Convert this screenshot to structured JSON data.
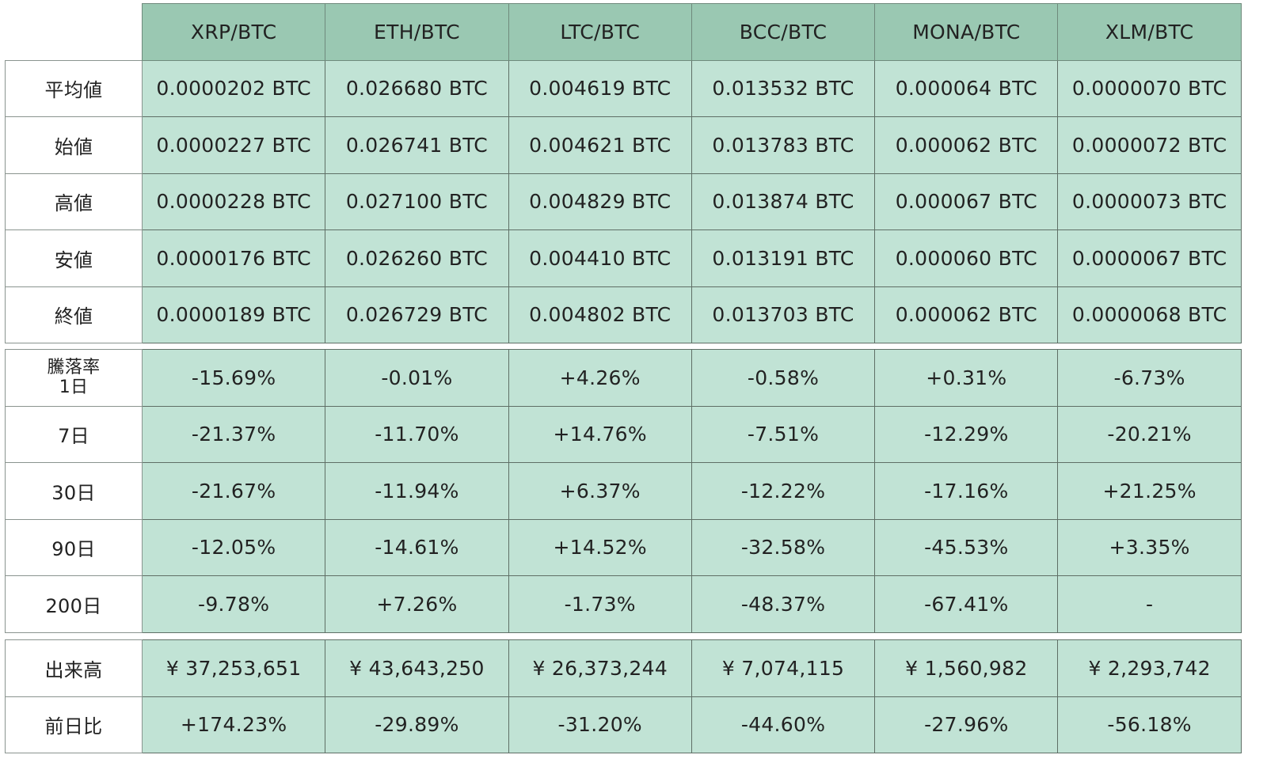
{
  "header": {
    "columns": [
      "XRP/BTC",
      "ETH/BTC",
      "LTC/BTC",
      "BCC/BTC",
      "MONA/BTC",
      "XLM/BTC"
    ]
  },
  "prices": {
    "rows": [
      {
        "label": "平均値",
        "values": [
          "0.0000202 BTC",
          "0.026680 BTC",
          "0.004619 BTC",
          "0.013532 BTC",
          "0.000064 BTC",
          "0.0000070 BTC"
        ]
      },
      {
        "label": "始値",
        "values": [
          "0.0000227 BTC",
          "0.026741 BTC",
          "0.004621 BTC",
          "0.013783 BTC",
          "0.000062 BTC",
          "0.0000072 BTC"
        ]
      },
      {
        "label": "高値",
        "values": [
          "0.0000228 BTC",
          "0.027100 BTC",
          "0.004829 BTC",
          "0.013874 BTC",
          "0.000067 BTC",
          "0.0000073 BTC"
        ]
      },
      {
        "label": "安値",
        "values": [
          "0.0000176 BTC",
          "0.026260 BTC",
          "0.004410 BTC",
          "0.013191 BTC",
          "0.000060 BTC",
          "0.0000067 BTC"
        ]
      },
      {
        "label": "終値",
        "values": [
          "0.0000189 BTC",
          "0.026729 BTC",
          "0.004802 BTC",
          "0.013703 BTC",
          "0.000062 BTC",
          "0.0000068 BTC"
        ]
      }
    ]
  },
  "changes": {
    "title": "騰落率",
    "rows": [
      {
        "label": "1日",
        "values": [
          "-15.69%",
          "-0.01%",
          "+4.26%",
          "-0.58%",
          "+0.31%",
          "-6.73%"
        ]
      },
      {
        "label": "7日",
        "values": [
          "-21.37%",
          "-11.70%",
          "+14.76%",
          "-7.51%",
          "-12.29%",
          "-20.21%"
        ]
      },
      {
        "label": "30日",
        "values": [
          "-21.67%",
          "-11.94%",
          "+6.37%",
          "-12.22%",
          "-17.16%",
          "+21.25%"
        ]
      },
      {
        "label": "90日",
        "values": [
          "-12.05%",
          "-14.61%",
          "+14.52%",
          "-32.58%",
          "-45.53%",
          "+3.35%"
        ]
      },
      {
        "label": "200日",
        "values": [
          "-9.78%",
          "+7.26%",
          "-1.73%",
          "-48.37%",
          "-67.41%",
          "-"
        ]
      }
    ]
  },
  "volume": {
    "rows": [
      {
        "label": "出来高",
        "values": [
          "¥ 37,253,651",
          "¥ 43,643,250",
          "¥ 26,373,244",
          "¥ 7,074,115",
          "¥ 1,560,982",
          "¥ 2,293,742"
        ]
      },
      {
        "label": "前日比",
        "values": [
          "+174.23%",
          "-29.89%",
          "-31.20%",
          "-44.60%",
          "-27.96%",
          "-56.18%"
        ]
      }
    ]
  },
  "colors": {
    "header_bg": "#9ac8b2",
    "cell_bg": "#c1e3d5",
    "label_bg": "#ffffff"
  }
}
